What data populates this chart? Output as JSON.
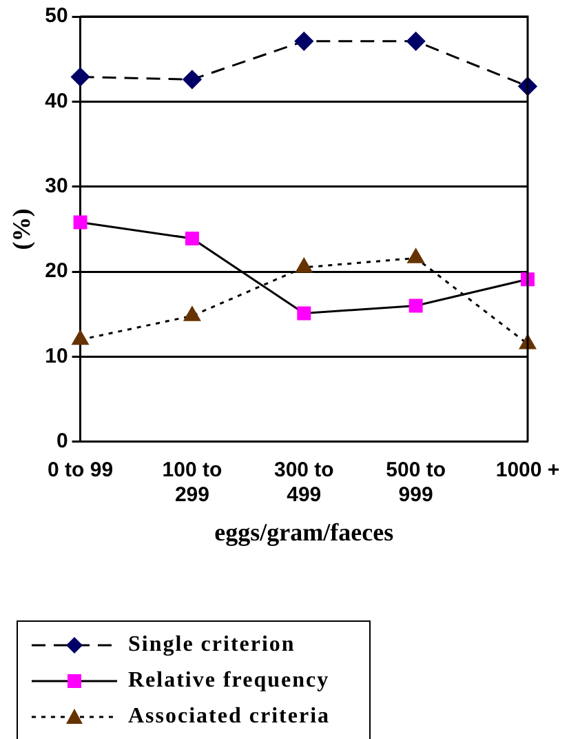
{
  "chart_data": {
    "type": "line",
    "xlabel": "eggs/gram/faeces",
    "ylabel": "(%)",
    "categories": [
      "0 to 99",
      "100 to 299",
      "300 to 499",
      "500 to 999",
      "1000 +"
    ],
    "series": [
      {
        "name": "Single criterion",
        "color": "#000066",
        "marker": "diamond",
        "line_style": "dashed",
        "values": [
          42.9,
          42.6,
          47.1,
          47.1,
          41.8
        ]
      },
      {
        "name": "Relative frequency",
        "color": "#ff00ff",
        "marker": "square",
        "line_style": "solid",
        "values": [
          25.8,
          23.9,
          15.1,
          16.0,
          19.1
        ]
      },
      {
        "name": "Associated criteria",
        "color": "#663300",
        "marker": "triangle",
        "line_style": "dotted",
        "values": [
          12.0,
          14.8,
          20.5,
          21.6,
          11.5
        ]
      }
    ],
    "ylim": [
      0,
      50
    ],
    "yticks": [
      0,
      10,
      20,
      30,
      40,
      50
    ],
    "grid": "y",
    "legend": "bottom"
  }
}
